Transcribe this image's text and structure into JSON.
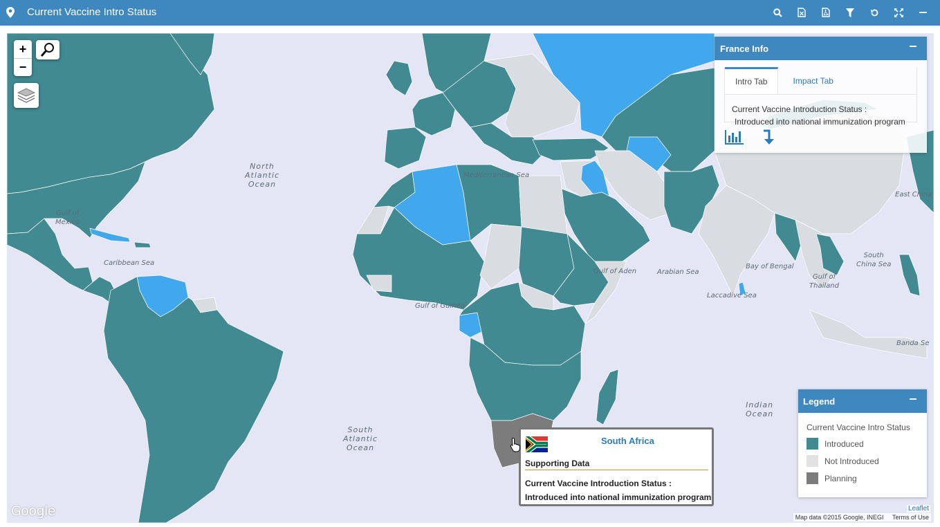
{
  "header": {
    "title": "Current Vaccine Intro Status",
    "tools": [
      "search-icon",
      "excel-export-icon",
      "pdf-export-icon",
      "filter-icon",
      "reset-icon",
      "fullscreen-icon",
      "minimize-icon"
    ]
  },
  "colors": {
    "header": "#3f88bf",
    "introduced": "#418a91",
    "not_introduced": "#d9dde2",
    "planning": "#7c7c7c",
    "highlight": "#42a8ee",
    "ocean": "#e4e6f5"
  },
  "map": {
    "zoom_in": "+",
    "zoom_out": "−",
    "ocean_labels": {
      "north_atlantic": "North\nAtlantic\nOcean",
      "south_atlantic": "South\nAtlantic\nOcean",
      "indian": "Indian\nOcean",
      "gulf_mexico": "Gulf of\nMexico",
      "caribbean": "Caribbean Sea",
      "mediterranean": "Mediterranean Sea",
      "gulf_guinea": "Gulf of Guinea",
      "gulf_aden": "Gulf of Aden",
      "arabian": "Arabian Sea",
      "bengal": "Bay of Bengal",
      "laccadive": "Laccadive Sea",
      "south_china": "South\nChina Sea",
      "thailand": "Gulf of\nThailand",
      "east_china": "East China",
      "banda": "Banda Se"
    },
    "google": "Google",
    "leaflet": "Leaflet",
    "map_data": "Map data ©2015 Google, INEGI",
    "terms": "Terms of Use"
  },
  "info_panel": {
    "title": "France Info",
    "tabs": [
      "Intro Tab",
      "Impact Tab"
    ],
    "status_label": "Current Vaccine Introduction Status :",
    "status_value": "Introduced into national immunization program"
  },
  "legend": {
    "title": "Legend",
    "subtitle": "Current Vaccine Intro Status",
    "items": [
      {
        "label": "Introduced",
        "color": "#418a91"
      },
      {
        "label": "Not Introduced",
        "color": "#e2e2e2"
      },
      {
        "label": "Planning",
        "color": "#7c7c7c"
      }
    ]
  },
  "popup": {
    "country": "South Africa",
    "section": "Supporting Data",
    "status_label": "Current Vaccine Introduction Status :",
    "status_value": "Introduced into national immunization program"
  }
}
